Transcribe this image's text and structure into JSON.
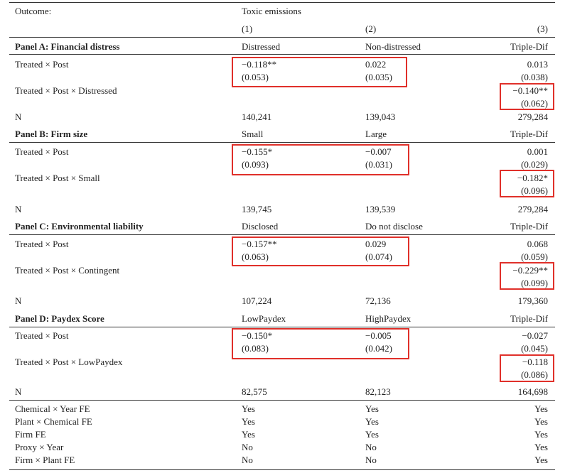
{
  "header": {
    "outcome_label": "Outcome:",
    "outcome_value": "Toxic emissions",
    "col_nums": [
      "(1)",
      "(2)",
      "(3)"
    ]
  },
  "panels": [
    {
      "title": "Panel A: Financial distress",
      "cols": [
        "Distressed",
        "Non-distressed",
        "Triple-Dif"
      ],
      "row1_label": "Treated × Post",
      "row1_coef": [
        "−0.118**",
        "0.022",
        "0.013"
      ],
      "row1_se": [
        "(0.053)",
        "(0.035)",
        "(0.038)"
      ],
      "row2_label": "Treated × Post × Distressed",
      "row2_coef": "−0.140**",
      "row2_se": "(0.062)",
      "n_label": "N",
      "n": [
        "140,241",
        "139,043",
        "279,284"
      ]
    },
    {
      "title": "Panel B: Firm size",
      "cols": [
        "Small",
        "Large",
        "Triple-Dif"
      ],
      "row1_label": "Treated × Post",
      "row1_coef": [
        "−0.155*",
        "−0.007",
        "0.001"
      ],
      "row1_se": [
        "(0.093)",
        "(0.031)",
        "(0.029)"
      ],
      "row2_label": "Treated × Post × Small",
      "row2_coef": "−0.182*",
      "row2_se": "(0.096)",
      "n_label": "N",
      "n": [
        "139,745",
        "139,539",
        "279,284"
      ]
    },
    {
      "title": "Panel C: Environmental liability",
      "cols": [
        "Disclosed",
        "Do not disclose",
        "Triple-Dif"
      ],
      "row1_label": "Treated × Post",
      "row1_coef": [
        "−0.157**",
        "0.029",
        "0.068"
      ],
      "row1_se": [
        "(0.063)",
        "(0.074)",
        "(0.059)"
      ],
      "row2_label": "Treated × Post × Contingent",
      "row2_coef": "−0.229**",
      "row2_se": "(0.099)",
      "n_label": "N",
      "n": [
        "107,224",
        "72,136",
        "179,360"
      ]
    },
    {
      "title": "Panel D: Paydex Score",
      "cols": [
        "LowPaydex",
        "HighPaydex",
        "Triple-Dif"
      ],
      "row1_label": "Treated × Post",
      "row1_coef": [
        "−0.150*",
        "−0.005",
        "−0.027"
      ],
      "row1_se": [
        "(0.083)",
        "(0.042)",
        "(0.045)"
      ],
      "row2_label": "Treated × Post × LowPaydex",
      "row2_coef": "−0.118",
      "row2_se": "(0.086)",
      "n_label": "N",
      "n": [
        "82,575",
        "82,123",
        "164,698"
      ]
    }
  ],
  "fixed_effects": [
    {
      "label": "Chemical × Year FE",
      "values": [
        "Yes",
        "Yes",
        "Yes"
      ]
    },
    {
      "label": "Plant × Chemical FE",
      "values": [
        "Yes",
        "Yes",
        "Yes"
      ]
    },
    {
      "label": "Firm FE",
      "values": [
        "Yes",
        "Yes",
        "Yes"
      ]
    },
    {
      "label": "Proxy × Year",
      "values": [
        "No",
        "No",
        "Yes"
      ]
    },
    {
      "label": "Firm × Plant FE",
      "values": [
        "No",
        "No",
        "Yes"
      ]
    }
  ],
  "highlight_color": "#e0302a"
}
